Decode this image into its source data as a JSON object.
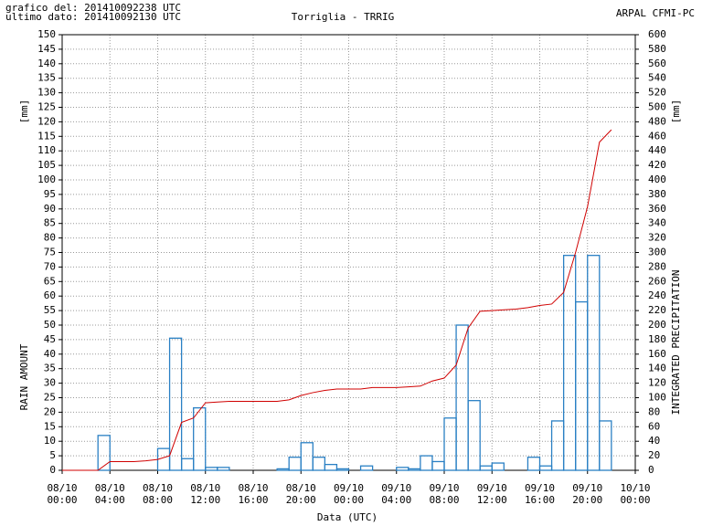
{
  "header": {
    "generated": "grafico del: 201410092238 UTC",
    "last_data": "ultimo dato: 201410092130 UTC",
    "source": "ARPAL CFMI-PC"
  },
  "chart_data": {
    "type": "bar-line",
    "title": "Torriglia - TRRIG",
    "x_label": "Data (UTC)",
    "y_label": "RAIN AMOUNT",
    "y_unit": "[mm]",
    "y2_label": "INTEGRATED PRECIPITATION",
    "y2_unit": "[mm]",
    "x": [
      "08/10 00:00",
      "08/10 01:00",
      "08/10 02:00",
      "08/10 03:00",
      "08/10 04:00",
      "08/10 05:00",
      "08/10 06:00",
      "08/10 07:00",
      "08/10 08:00",
      "08/10 09:00",
      "08/10 10:00",
      "08/10 11:00",
      "08/10 12:00",
      "08/10 13:00",
      "08/10 14:00",
      "08/10 15:00",
      "08/10 16:00",
      "08/10 17:00",
      "08/10 18:00",
      "08/10 19:00",
      "08/10 20:00",
      "08/10 21:00",
      "08/10 22:00",
      "08/10 23:00",
      "09/10 00:00",
      "09/10 01:00",
      "09/10 02:00",
      "09/10 03:00",
      "09/10 04:00",
      "09/10 05:00",
      "09/10 06:00",
      "09/10 07:00",
      "09/10 08:00",
      "09/10 09:00",
      "09/10 10:00",
      "09/10 11:00",
      "09/10 12:00",
      "09/10 13:00",
      "09/10 14:00",
      "09/10 15:00",
      "09/10 16:00",
      "09/10 17:00",
      "09/10 18:00",
      "09/10 19:00",
      "09/10 20:00",
      "09/10 21:00",
      "09/10 22:00"
    ],
    "series": [
      {
        "type": "bar",
        "color": "#2a80c4",
        "values": [
          0,
          0,
          0,
          12,
          0,
          0,
          0,
          0,
          7.5,
          45.5,
          4,
          21.5,
          1,
          1,
          0,
          0,
          0,
          0,
          0.5,
          4.5,
          9.5,
          4.5,
          2,
          0.5,
          0,
          1.5,
          0,
          0,
          1,
          0.5,
          5,
          3,
          18,
          50,
          24,
          1.5,
          2.5,
          0,
          0,
          4.5,
          1.5,
          17,
          74,
          58,
          74,
          17,
          0
        ]
      },
      {
        "type": "line",
        "axis": "y2",
        "color": "#d00000",
        "values": [
          0,
          0,
          0,
          0,
          12,
          12,
          12,
          13,
          15,
          20,
          66,
          72,
          93,
          94,
          95,
          95,
          95,
          95,
          95,
          97,
          103,
          107,
          110,
          112,
          112,
          112,
          114,
          114,
          114,
          115,
          116,
          123,
          127,
          145,
          196,
          219,
          220,
          221,
          222,
          224,
          227,
          229,
          245,
          300,
          363,
          452,
          469
        ]
      }
    ],
    "xlim": [
      "08/10 00:00",
      "10/10 00:00"
    ],
    "xticks": [
      "08/10 00:00",
      "08/10 04:00",
      "08/10 08:00",
      "08/10 12:00",
      "08/10 16:00",
      "08/10 20:00",
      "09/10 00:00",
      "09/10 04:00",
      "09/10 08:00",
      "09/10 12:00",
      "09/10 16:00",
      "09/10 20:00",
      "10/10 00:00"
    ],
    "ylim": [
      0,
      150
    ],
    "yticks": [
      0,
      5,
      10,
      15,
      20,
      25,
      30,
      35,
      40,
      45,
      50,
      55,
      60,
      65,
      70,
      75,
      80,
      85,
      90,
      95,
      100,
      105,
      110,
      115,
      120,
      125,
      130,
      135,
      140,
      145,
      150
    ],
    "y2lim": [
      0,
      600
    ],
    "y2ticks": [
      0,
      20,
      40,
      60,
      80,
      100,
      120,
      140,
      160,
      180,
      200,
      220,
      240,
      260,
      280,
      300,
      320,
      340,
      360,
      380,
      400,
      420,
      440,
      460,
      480,
      500,
      520,
      540,
      560,
      580,
      600
    ],
    "grid": true
  }
}
